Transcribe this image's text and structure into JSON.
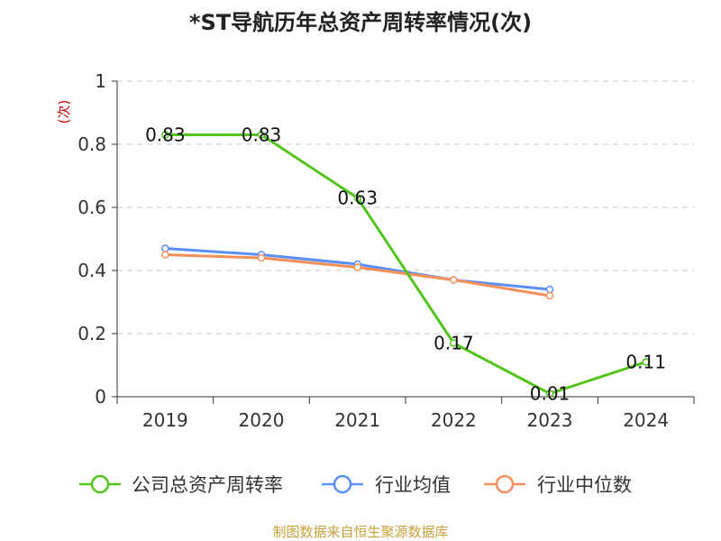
{
  "title": "*ST导航历年总资产周转率情况(次)",
  "source": "制图数据来自恒生聚源数据库",
  "chart_data": {
    "type": "line",
    "title": "*ST导航历年总资产周转率情况(次)",
    "ylabel": "(次)",
    "xlabel": "",
    "categories": [
      "2019",
      "2020",
      "2021",
      "2022",
      "2023",
      "2024"
    ],
    "ylim": [
      0,
      1
    ],
    "yticks": [
      0,
      0.2,
      0.4,
      0.6,
      0.8,
      1
    ],
    "ytick_labels": [
      "0",
      "0.2",
      "0.4",
      "0.6",
      "0.8",
      "1"
    ],
    "grid": true,
    "legend_position": "bottom",
    "series": [
      {
        "name": "公司总资产周转率",
        "color": "#52c41a",
        "values": [
          0.83,
          0.83,
          0.63,
          0.17,
          0.01,
          0.11
        ],
        "labels": [
          "0.83",
          "0.83",
          "0.63",
          "0.17",
          "0.01",
          "0.11"
        ]
      },
      {
        "name": "行业均值",
        "color": "#5b8ff9",
        "values": [
          0.47,
          0.45,
          0.42,
          0.37,
          0.34,
          null
        ]
      },
      {
        "name": "行业中位数",
        "color": "#f6905a",
        "values": [
          0.45,
          0.44,
          0.41,
          0.37,
          0.32,
          null
        ]
      }
    ]
  }
}
